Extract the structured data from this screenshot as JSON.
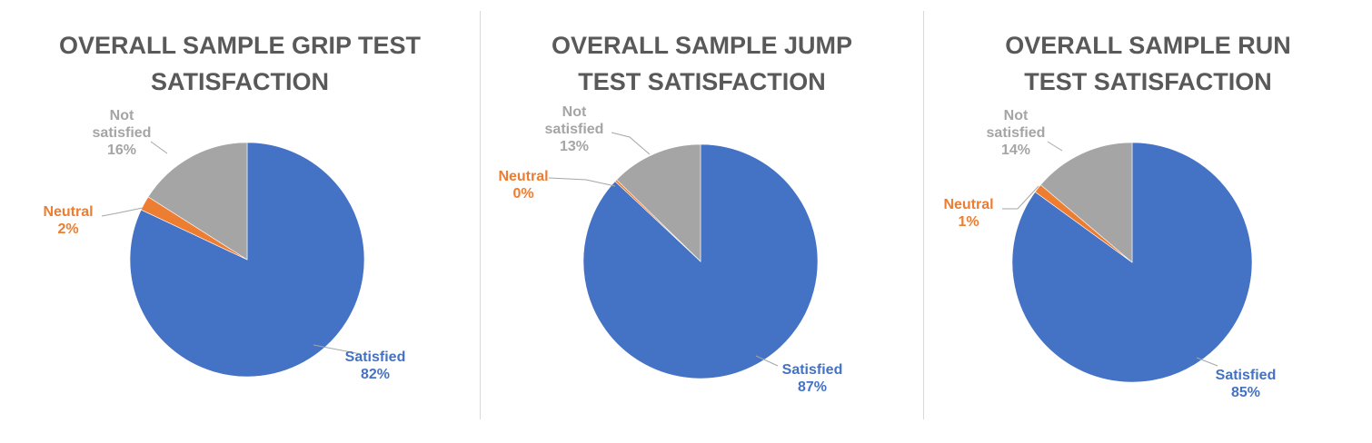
{
  "chart_data": [
    {
      "type": "pie",
      "title": "OVERALL SAMPLE GRIP TEST SATISFACTION",
      "title_lines": [
        "OVERALL SAMPLE GRIP TEST",
        "SATISFACTION"
      ],
      "categories": [
        "Satisfied",
        "Neutral",
        "Not satisfied"
      ],
      "values": [
        82,
        2,
        16
      ],
      "label_lines": [
        [
          "Satisfied"
        ],
        [
          "Neutral"
        ],
        [
          "Not",
          "satisfied"
        ]
      ],
      "value_labels": [
        "82%",
        "2%",
        "16%"
      ]
    },
    {
      "type": "pie",
      "title": "OVERALL SAMPLE JUMP TEST SATISFACTION",
      "title_lines": [
        "OVERALL SAMPLE JUMP",
        "TEST SATISFACTION"
      ],
      "categories": [
        "Satisfied",
        "Neutral",
        "Not satisfied"
      ],
      "values": [
        87,
        0.3,
        12.7
      ],
      "label_lines": [
        [
          "Satisfied"
        ],
        [
          "Neutral"
        ],
        [
          "Not",
          "satisfied"
        ]
      ],
      "value_labels": [
        "87%",
        "0%",
        "13%"
      ]
    },
    {
      "type": "pie",
      "title": "OVERALL SAMPLE RUN TEST SATISFACTION",
      "title_lines": [
        "OVERALL SAMPLE RUN",
        "TEST SATISFACTION"
      ],
      "categories": [
        "Satisfied",
        "Neutral",
        "Not satisfied"
      ],
      "values": [
        85,
        1.2,
        13.8
      ],
      "label_lines": [
        [
          "Satisfied"
        ],
        [
          "Neutral"
        ],
        [
          "Not",
          "satisfied"
        ]
      ],
      "value_labels": [
        "85%",
        "1%",
        "14%"
      ]
    }
  ],
  "colors": {
    "Satisfied": "#4472c4",
    "Neutral": "#ed7d31",
    "Not satisfied": "#a5a5a5",
    "title": "#595959",
    "leader": "#a6a6a6"
  }
}
